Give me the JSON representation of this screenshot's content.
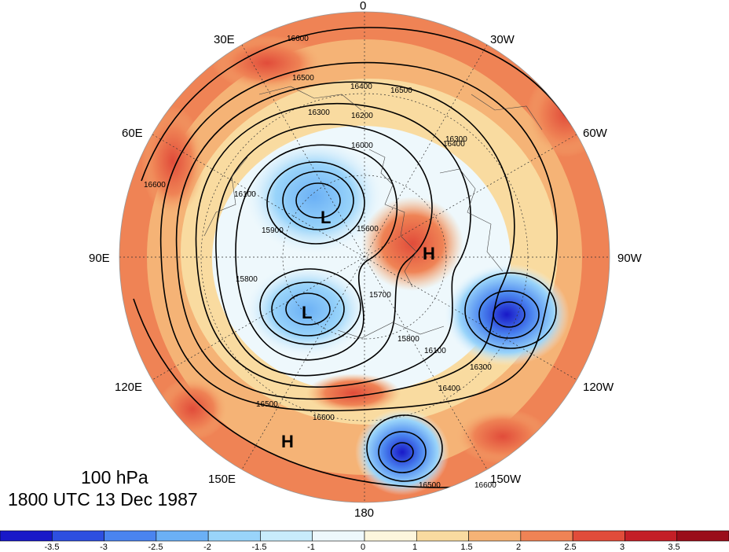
{
  "caption": {
    "level": "100 hPa",
    "valid_time": "1800 UTC 13 Dec 1987"
  },
  "longitude_labels": [
    "0",
    "30W",
    "60W",
    "90W",
    "120W",
    "150W",
    "180",
    "150E",
    "120E",
    "90E",
    "60E",
    "30E"
  ],
  "pressure_centers": [
    {
      "type": "L",
      "label": "L"
    },
    {
      "type": "L",
      "label": "L"
    },
    {
      "type": "H",
      "label": "H"
    },
    {
      "type": "H",
      "label": "H"
    }
  ],
  "contour_labels": [
    "16600",
    "16500",
    "16400",
    "16300",
    "16200",
    "16100",
    "16000",
    "15900",
    "15800",
    "15700",
    "15600",
    "16600",
    "16500",
    "16400",
    "16300",
    "16100",
    "15800",
    "16500",
    "16600",
    "16400",
    "16300",
    "16500",
    "16600"
  ],
  "colorbar": {
    "tick_labels": [
      "-3.5",
      "-3",
      "-2.5",
      "-2",
      "-1.5",
      "-1",
      "0",
      "1",
      "1.5",
      "2",
      "2.5",
      "3",
      "3.5"
    ],
    "colors": [
      "#1818c8",
      "#2d4fe0",
      "#4a84ef",
      "#6bb0f5",
      "#99d4fa",
      "#c8ecfb",
      "#eef8fc",
      "#fdf6dd",
      "#f9dba0",
      "#f5b376",
      "#ef8355",
      "#e14c3a",
      "#c41f27",
      "#9a0d1a"
    ]
  }
}
